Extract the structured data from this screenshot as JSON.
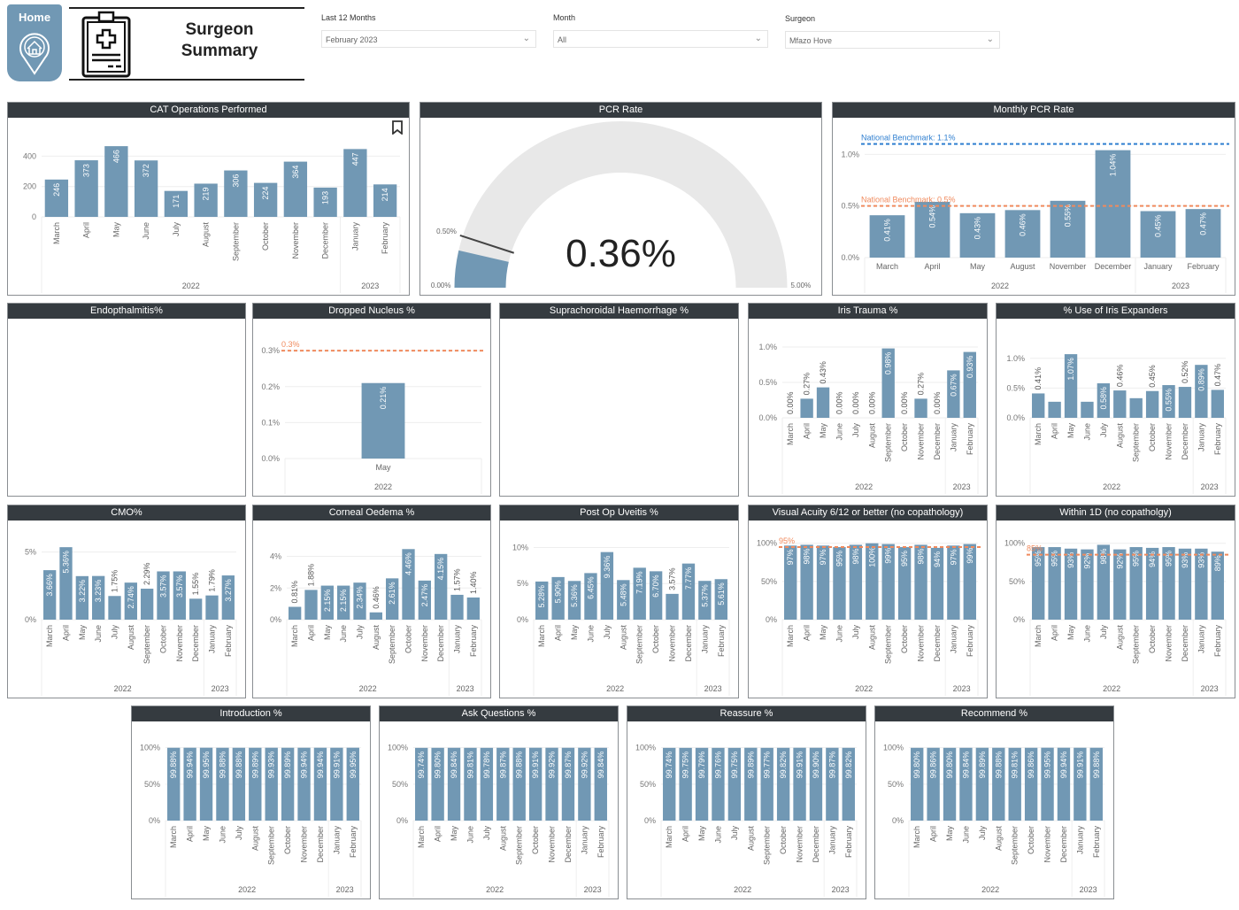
{
  "header": {
    "home_label": "Home",
    "title_line1": "Surgeon",
    "title_line2": "Summary"
  },
  "filters": [
    {
      "label": "Last 12 Months",
      "value": "February 2023"
    },
    {
      "label": "Month",
      "value": "All"
    },
    {
      "label": "Surgeon",
      "value": "Mfazo Hove"
    }
  ],
  "colors": {
    "bar": "#7198b4",
    "header": "#353b40",
    "benchmark_orange": "#f08a5d",
    "benchmark_blue": "#2f7fd0",
    "gauge_bg": "#e8e8e8"
  },
  "gauge": {
    "title": "PCR Rate",
    "value_label": "0.36%",
    "value": 0.36,
    "min": 0,
    "max": 5,
    "target": 0.5,
    "min_label": "0.00%",
    "max_label": "5.00%",
    "target_label": "0.50%"
  },
  "empty_panels": [
    {
      "title": "Endopthalmitis%"
    },
    {
      "title": "Suprachoroidal Haemorrhage  %"
    }
  ],
  "chart_data": [
    {
      "id": "cat",
      "title": "CAT Operations Performed",
      "type": "bar",
      "categories": [
        "March",
        "April",
        "May",
        "June",
        "July",
        "August",
        "September",
        "October",
        "November",
        "December",
        "January",
        "February"
      ],
      "years": [
        {
          "label": "2022",
          "span": 10
        },
        {
          "label": "2023",
          "span": 2
        }
      ],
      "values": [
        246,
        373,
        466,
        372,
        171,
        219,
        306,
        224,
        364,
        193,
        447,
        214
      ],
      "labels": [
        "246",
        "373",
        "466",
        "372",
        "171",
        "219",
        "306",
        "224",
        "364",
        "193",
        "447",
        "214"
      ],
      "ymax": 490,
      "yticks": [
        0,
        200,
        400
      ],
      "ytick_labels": [
        "0",
        "200",
        "400"
      ],
      "rotate": true,
      "benchmarks": []
    },
    {
      "id": "mpcr",
      "title": "Monthly PCR Rate",
      "type": "bar",
      "categories": [
        "March",
        "April",
        "May",
        "August",
        "November",
        "December",
        "January",
        "February"
      ],
      "years": [
        {
          "label": "2022",
          "span": 6
        },
        {
          "label": "2023",
          "span": 2
        }
      ],
      "values": [
        0.41,
        0.54,
        0.43,
        0.46,
        0.55,
        1.04,
        0.45,
        0.47
      ],
      "labels": [
        "0.41%",
        "0.54%",
        "0.43%",
        "0.46%",
        "0.55%",
        "1.04%",
        "0.45%",
        "0.47%"
      ],
      "ymax": 1.2,
      "yticks": [
        0,
        0.5,
        1.0
      ],
      "ytick_labels": [
        "0.0%",
        "0.5%",
        "1.0%"
      ],
      "rotate": false,
      "benchmarks": [
        {
          "value": 1.1,
          "label": "National Benchmark: 1.1%",
          "color": "#2f7fd0"
        },
        {
          "value": 0.5,
          "label": "National Benchmark: 0.5%",
          "color": "#f08a5d"
        }
      ]
    },
    {
      "id": "dn",
      "title": "Dropped Nucleus %",
      "type": "bar",
      "categories": [
        "May"
      ],
      "years": [
        {
          "label": "2022",
          "span": 1
        }
      ],
      "values": [
        0.21
      ],
      "labels": [
        "0.21%"
      ],
      "ymax": 0.33,
      "yticks": [
        0,
        0.1,
        0.2,
        0.3
      ],
      "ytick_labels": [
        "0.0%",
        "0.1%",
        "0.2%",
        "0.3%"
      ],
      "rotate": false,
      "barRatio": 0.22,
      "benchmarks": [
        {
          "value": 0.3,
          "label": "0.3%",
          "color": "#f08a5d"
        }
      ]
    },
    {
      "id": "it",
      "title": "Iris Trauma %",
      "type": "bar",
      "categories": [
        "March",
        "April",
        "May",
        "June",
        "July",
        "August",
        "September",
        "October",
        "November",
        "December",
        "January",
        "February"
      ],
      "years": [
        {
          "label": "2022",
          "span": 10
        },
        {
          "label": "2023",
          "span": 2
        }
      ],
      "values": [
        0,
        0.27,
        0.43,
        0,
        0,
        0,
        0.98,
        0,
        0.27,
        0,
        0.67,
        0.93
      ],
      "labels": [
        "0.00%",
        "0.27%",
        "0.43%",
        "0.00%",
        "0.00%",
        "0.00%",
        "0.98%",
        "0.00%",
        "0.27%",
        "0.00%",
        "0.67%",
        "0.93%"
      ],
      "ymax": 1.05,
      "yticks": [
        0,
        0.5,
        1.0
      ],
      "ytick_labels": [
        "0.0%",
        "0.5%",
        "1.0%"
      ],
      "rotate": true,
      "benchmarks": []
    },
    {
      "id": "ie",
      "title": "% Use of Iris Expanders",
      "type": "bar",
      "categories": [
        "March",
        "April",
        "May",
        "June",
        "July",
        "August",
        "September",
        "October",
        "November",
        "December",
        "January",
        "February"
      ],
      "years": [
        {
          "label": "2022",
          "span": 10
        },
        {
          "label": "2023",
          "span": 2
        }
      ],
      "values": [
        0.41,
        0.27,
        1.07,
        0.27,
        0.58,
        0.46,
        0.33,
        0.45,
        0.55,
        0.52,
        0.89,
        0.47
      ],
      "labels": [
        "0.41%",
        null,
        "1.07%",
        null,
        "0.58%",
        "0.46%",
        null,
        "0.45%",
        "0.55%",
        "0.52%",
        "0.89%",
        "0.47%"
      ],
      "ymax": 1.25,
      "yticks": [
        0,
        0.5,
        1.0
      ],
      "ytick_labels": [
        "0.0%",
        "0.5%",
        "1.0%"
      ],
      "rotate": true,
      "benchmarks": []
    },
    {
      "id": "cmo",
      "title": "CMO%",
      "type": "bar",
      "categories": [
        "March",
        "April",
        "May",
        "June",
        "July",
        "August",
        "September",
        "October",
        "November",
        "December",
        "January",
        "February"
      ],
      "years": [
        {
          "label": "2022",
          "span": 10
        },
        {
          "label": "2023",
          "span": 2
        }
      ],
      "values": [
        3.66,
        5.36,
        3.22,
        3.23,
        1.75,
        2.74,
        2.29,
        3.57,
        3.57,
        1.55,
        1.79,
        3.27
      ],
      "labels": [
        "3.66%",
        "5.36%",
        "3.22%",
        "3.23%",
        "1.75%",
        "2.74%",
        "2.29%",
        "3.57%",
        "3.57%",
        "1.55%",
        "1.79%",
        "3.27%"
      ],
      "ymax": 5.5,
      "yticks": [
        0,
        5
      ],
      "ytick_labels": [
        "0%",
        "5%"
      ],
      "rotate": true,
      "benchmarks": []
    },
    {
      "id": "co",
      "title": "Corneal Oedema %",
      "type": "bar",
      "categories": [
        "March",
        "April",
        "May",
        "June",
        "July",
        "August",
        "September",
        "October",
        "November",
        "December",
        "January",
        "February"
      ],
      "years": [
        {
          "label": "2022",
          "span": 10
        },
        {
          "label": "2023",
          "span": 2
        }
      ],
      "values": [
        0.81,
        1.88,
        2.15,
        2.15,
        2.34,
        0.46,
        2.61,
        4.46,
        2.47,
        4.15,
        1.57,
        1.4
      ],
      "labels": [
        "0.81%",
        "1.88%",
        "2.15%",
        "2.15%",
        "2.34%",
        "0.46%",
        "2.61%",
        "4.46%",
        "2.47%",
        "4.15%",
        "1.57%",
        "1.40%"
      ],
      "ymax": 4.7,
      "yticks": [
        0,
        2,
        4
      ],
      "ytick_labels": [
        "0%",
        "2%",
        "4%"
      ],
      "rotate": true,
      "benchmarks": []
    },
    {
      "id": "pou",
      "title": "Post Op Uveitis %",
      "type": "bar",
      "categories": [
        "March",
        "April",
        "May",
        "June",
        "July",
        "August",
        "September",
        "October",
        "November",
        "December",
        "January",
        "February"
      ],
      "years": [
        {
          "label": "2022",
          "span": 10
        },
        {
          "label": "2023",
          "span": 2
        }
      ],
      "values": [
        5.28,
        5.9,
        5.36,
        6.45,
        9.36,
        5.48,
        7.19,
        6.7,
        3.57,
        7.77,
        5.37,
        5.61
      ],
      "labels": [
        "5.28%",
        "5.90%",
        "5.36%",
        "6.45%",
        "9.36%",
        "5.48%",
        "7.19%",
        "6.70%",
        "3.57%",
        "7.77%",
        "5.37%",
        "5.61%"
      ],
      "ymax": 10.3,
      "yticks": [
        0,
        5,
        10
      ],
      "ytick_labels": [
        "0%",
        "5%",
        "10%"
      ],
      "rotate": true,
      "benchmarks": []
    },
    {
      "id": "va",
      "title": "Visual Acuity 6/12 or better (no copathology)",
      "type": "bar",
      "categories": [
        "March",
        "April",
        "May",
        "June",
        "July",
        "August",
        "September",
        "October",
        "November",
        "December",
        "January",
        "February"
      ],
      "years": [
        {
          "label": "2022",
          "span": 10
        },
        {
          "label": "2023",
          "span": 2
        }
      ],
      "values": [
        97,
        98,
        97,
        95,
        98,
        100,
        99,
        95,
        98,
        94,
        97,
        99
      ],
      "labels": [
        "97%",
        "98%",
        "97%",
        "95%",
        "98%",
        "100%",
        "99%",
        "95%",
        "98%",
        "94%",
        "97%",
        "99%"
      ],
      "ymax": 102,
      "yticks": [
        0,
        50,
        100
      ],
      "ytick_labels": [
        "0%",
        "50%",
        "100%"
      ],
      "rotate": true,
      "benchmarks": [
        {
          "value": 95,
          "label": "95%",
          "color": "#f08a5d"
        }
      ]
    },
    {
      "id": "w1d",
      "title": "Within 1D (no copatholgy)",
      "type": "bar",
      "categories": [
        "March",
        "April",
        "May",
        "June",
        "July",
        "August",
        "September",
        "October",
        "November",
        "December",
        "January",
        "February"
      ],
      "years": [
        {
          "label": "2022",
          "span": 10
        },
        {
          "label": "2023",
          "span": 2
        }
      ],
      "values": [
        95,
        95,
        93,
        92,
        98,
        92,
        95,
        94,
        95,
        93,
        93,
        89
      ],
      "labels": [
        "95%",
        "95%",
        "93%",
        "92%",
        "98%",
        "92%",
        "95%",
        "94%",
        "95%",
        "93%",
        "93%",
        "89%"
      ],
      "ymax": 102,
      "yticks": [
        0,
        50,
        100
      ],
      "ytick_labels": [
        "0%",
        "50%",
        "100%"
      ],
      "rotate": true,
      "benchmarks": [
        {
          "value": 85,
          "label": "85%",
          "color": "#f08a5d"
        }
      ]
    },
    {
      "id": "intro",
      "title": "Introduction %",
      "type": "bar",
      "categories": [
        "March",
        "April",
        "May",
        "June",
        "July",
        "August",
        "September",
        "October",
        "November",
        "December",
        "January",
        "February"
      ],
      "years": [
        {
          "label": "2022",
          "span": 10
        },
        {
          "label": "2023",
          "span": 2
        }
      ],
      "values": [
        99.88,
        99.94,
        99.95,
        99.88,
        99.88,
        99.89,
        99.93,
        99.89,
        99.94,
        99.94,
        99.91,
        99.95
      ],
      "labels": [
        "99.88%",
        "99.94%",
        "99.95%",
        "99.88%",
        "99.88%",
        "99.89%",
        "99.93%",
        "99.89%",
        "99.94%",
        "99.94%",
        "99.91%",
        "99.95%"
      ],
      "ymax": 102,
      "yticks": [
        0,
        50,
        100
      ],
      "ytick_labels": [
        "0%",
        "50%",
        "100%"
      ],
      "rotate": true,
      "benchmarks": []
    },
    {
      "id": "ask",
      "title": "Ask Questions %",
      "type": "bar",
      "categories": [
        "March",
        "April",
        "May",
        "June",
        "July",
        "August",
        "September",
        "October",
        "November",
        "December",
        "January",
        "February"
      ],
      "years": [
        {
          "label": "2022",
          "span": 10
        },
        {
          "label": "2023",
          "span": 2
        }
      ],
      "values": [
        99.74,
        99.8,
        99.84,
        99.81,
        99.78,
        99.87,
        99.88,
        99.91,
        99.92,
        99.87,
        99.92,
        99.84
      ],
      "labels": [
        "99.74%",
        "99.80%",
        "99.84%",
        "99.81%",
        "99.78%",
        "99.87%",
        "99.88%",
        "99.91%",
        "99.92%",
        "99.87%",
        "99.92%",
        "99.84%"
      ],
      "ymax": 102,
      "yticks": [
        0,
        50,
        100
      ],
      "ytick_labels": [
        "0%",
        "50%",
        "100%"
      ],
      "rotate": true,
      "benchmarks": []
    },
    {
      "id": "reassure",
      "title": "Reassure %",
      "type": "bar",
      "categories": [
        "March",
        "April",
        "May",
        "June",
        "July",
        "August",
        "September",
        "October",
        "November",
        "December",
        "January",
        "February"
      ],
      "years": [
        {
          "label": "2022",
          "span": 10
        },
        {
          "label": "2023",
          "span": 2
        }
      ],
      "values": [
        99.74,
        99.75,
        99.79,
        99.76,
        99.75,
        99.89,
        99.77,
        99.82,
        99.91,
        99.9,
        99.87,
        99.82
      ],
      "labels": [
        "99.74%",
        "99.75%",
        "99.79%",
        "99.76%",
        "99.75%",
        "99.89%",
        "99.77%",
        "99.82%",
        "99.91%",
        "99.90%",
        "99.87%",
        "99.82%"
      ],
      "ymax": 102,
      "yticks": [
        0,
        50,
        100
      ],
      "ytick_labels": [
        "0%",
        "50%",
        "100%"
      ],
      "rotate": true,
      "benchmarks": []
    },
    {
      "id": "recommend",
      "title": "Recommend %",
      "type": "bar",
      "categories": [
        "March",
        "April",
        "May",
        "June",
        "July",
        "August",
        "September",
        "October",
        "November",
        "December",
        "January",
        "February"
      ],
      "years": [
        {
          "label": "2022",
          "span": 10
        },
        {
          "label": "2023",
          "span": 2
        }
      ],
      "values": [
        99.8,
        99.86,
        99.8,
        99.84,
        99.89,
        99.88,
        99.81,
        99.86,
        99.95,
        99.94,
        99.91,
        99.88
      ],
      "labels": [
        "99.80%",
        "99.86%",
        "99.80%",
        "99.84%",
        "99.89%",
        "99.88%",
        "99.81%",
        "99.86%",
        "99.95%",
        "99.94%",
        "99.91%",
        "99.88%"
      ],
      "ymax": 102,
      "yticks": [
        0,
        50,
        100
      ],
      "ytick_labels": [
        "0%",
        "50%",
        "100%"
      ],
      "rotate": true,
      "benchmarks": []
    }
  ]
}
